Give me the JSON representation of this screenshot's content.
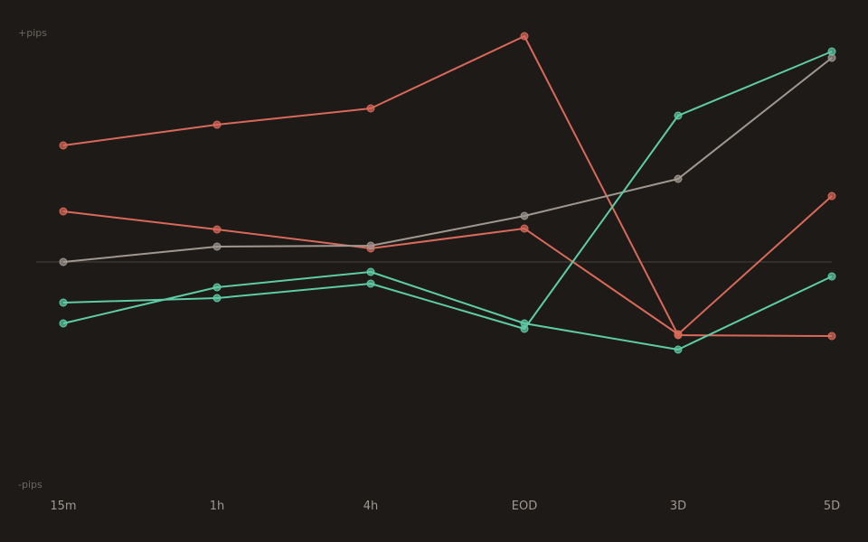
{
  "chart_data": {
    "type": "line",
    "categories": [
      "15m",
      "1h",
      "4h",
      "EOD",
      "3D",
      "5D"
    ],
    "y_top_label": "+pips",
    "y_bottom_label": "-pips",
    "ylim": [
      -100,
      100
    ],
    "baseline": 0,
    "grid": false,
    "legend": "none",
    "series": [
      {
        "color": "#d9695a",
        "values": [
          51.6,
          60.8,
          68.0,
          100.0,
          -32.4,
          -32.8
        ]
      },
      {
        "color": "#d9695a",
        "values": [
          22.4,
          14.4,
          6.0,
          14.8,
          -32.0,
          29.2
        ]
      },
      {
        "color": "#a09890",
        "values": [
          0.0,
          6.8,
          7.2,
          20.4,
          36.8,
          90.4
        ]
      },
      {
        "color": "#5ecca6",
        "values": [
          -18.0,
          -16.0,
          -9.6,
          -29.6,
          64.8,
          93.2
        ]
      },
      {
        "color": "#5ecca6",
        "values": [
          -27.2,
          -11.2,
          -4.4,
          -27.2,
          -38.8,
          -6.4
        ]
      }
    ]
  },
  "colors": {
    "background": "#1e1a17",
    "baseline": "#3a3430",
    "axis_label": "#6e6660",
    "tick_label": "#a09890"
  }
}
